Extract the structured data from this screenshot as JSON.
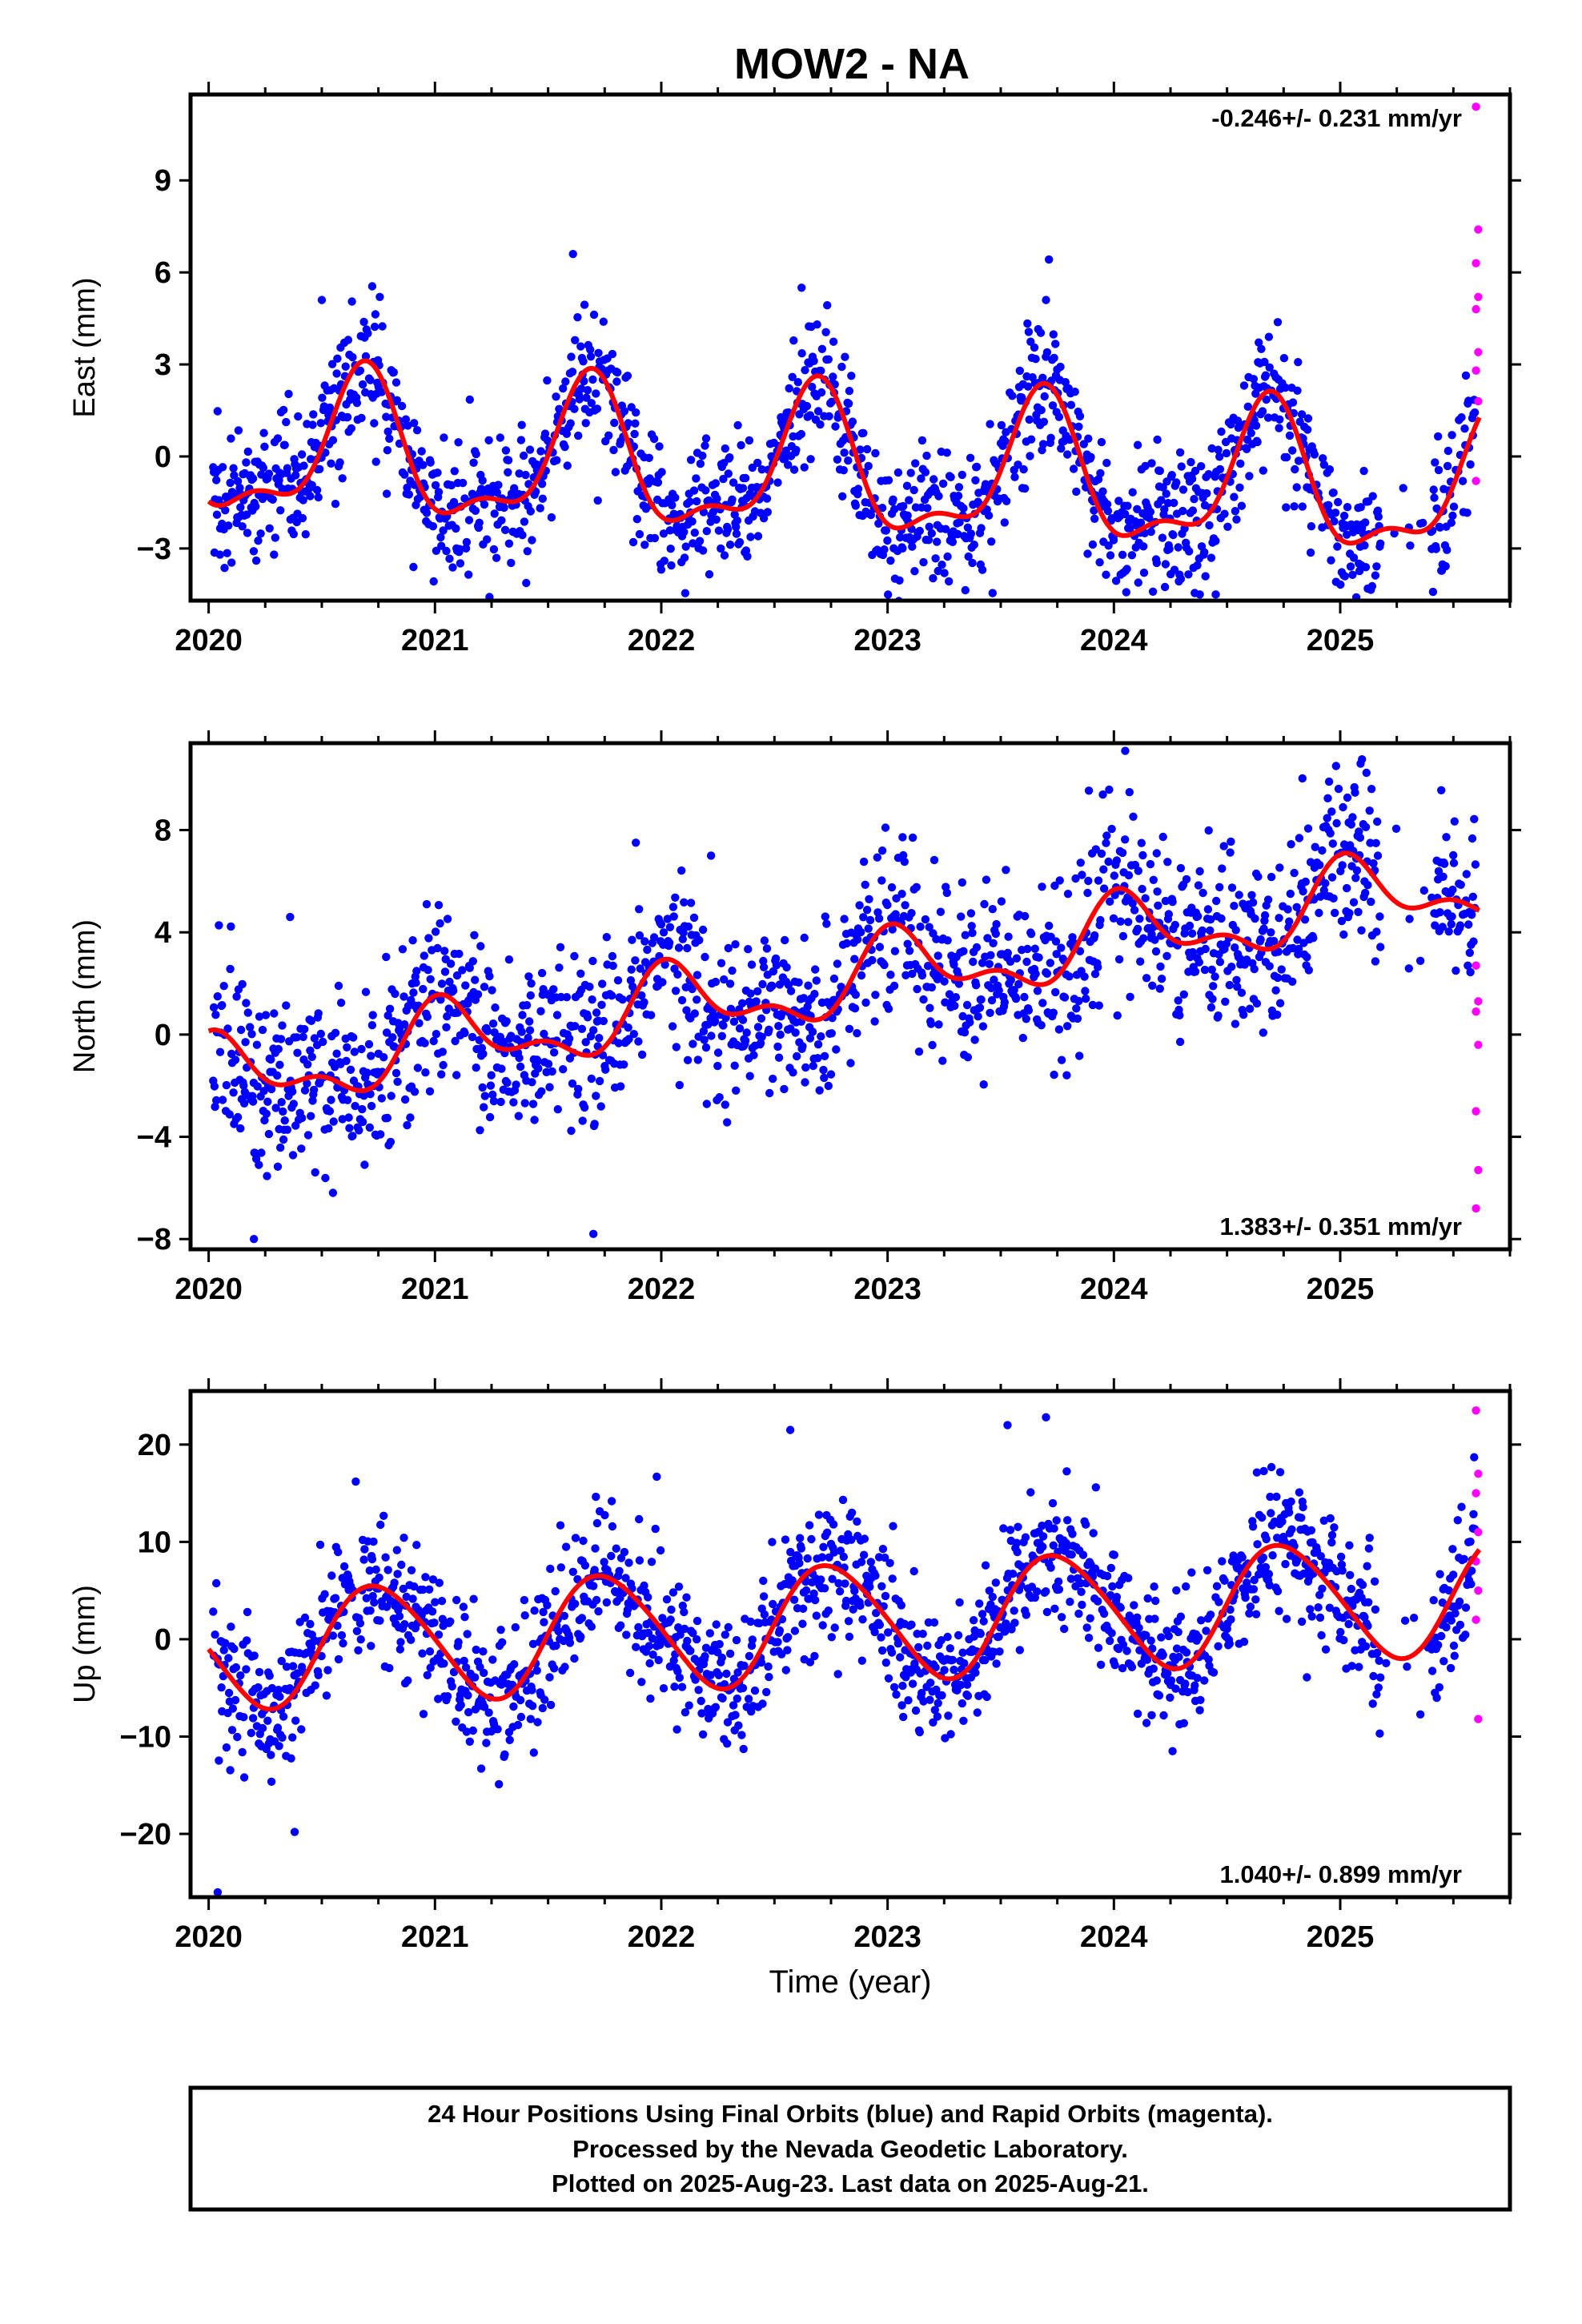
{
  "title": "MOW2 - NA",
  "x_axis_label": "Time (year)",
  "footer": {
    "line1": "24 Hour Positions Using Final Orbits (blue) and Rapid Orbits (magenta).",
    "line2": "Processed by the Nevada Geodetic Laboratory.",
    "line3": "Plotted on 2025-Aug-23. Last data on 2025-Aug-21."
  },
  "colors": {
    "final_orbits": "#0000ff",
    "rapid_orbits": "#ff00ff",
    "model_fit": "#ff0000",
    "frame": "#000000"
  },
  "chart_data": [
    {
      "type": "scatter",
      "panel": "East",
      "ylabel": "East (mm)",
      "xlim": [
        2019.92,
        2025.75
      ],
      "ylim": [
        -4.7,
        11.8
      ],
      "yticks": [
        -3,
        0,
        3,
        6,
        9
      ],
      "xticks": [
        2020,
        2021,
        2022,
        2023,
        2024,
        2025
      ],
      "rate_text": "-0.246+/- 0.231 mm/yr",
      "rate_position": "top-right",
      "model": {
        "rate": -0.246,
        "offset": 0.2,
        "annual_amp": 2.2,
        "annual_phase_peak": 0.68,
        "semiannual_amp": 0.9,
        "semiannual_phase_peak": 0.2
      },
      "final_scatter_sd": 1.1,
      "rapid_points": [
        [
          2025.6,
          11.4
        ],
        [
          2025.61,
          7.4
        ],
        [
          2025.6,
          6.3
        ],
        [
          2025.61,
          5.2
        ],
        [
          2025.6,
          4.8
        ],
        [
          2025.61,
          3.4
        ],
        [
          2025.6,
          2.8
        ],
        [
          2025.61,
          1.8
        ],
        [
          2025.6,
          -0.8
        ]
      ],
      "outliers": [
        [
          2020.05,
          -3.2
        ],
        [
          2021.61,
          6.6
        ],
        [
          2022.62,
          5.5
        ],
        [
          2024.45,
          -4.5
        ],
        [
          2020.5,
          5.1
        ],
        [
          2023.7,
          5.1
        ]
      ]
    },
    {
      "type": "scatter",
      "panel": "North",
      "ylabel": "North (mm)",
      "xlim": [
        2019.92,
        2025.75
      ],
      "ylim": [
        -8.4,
        11.4
      ],
      "yticks": [
        -8,
        -4,
        0,
        4,
        8
      ],
      "xticks": [
        2020,
        2021,
        2022,
        2023,
        2024,
        2025
      ],
      "rate_text": "1.383+/- 0.351 mm/yr",
      "rate_position": "bottom-right",
      "model": {
        "rate": 1.383,
        "offset": -1.8,
        "annual_amp": 1.3,
        "annual_phase_peak": 0.05,
        "semiannual_amp": 0.7,
        "semiannual_phase_peak": 0.5
      },
      "final_scatter_sd": 1.7,
      "rapid_points": [
        [
          2025.6,
          2.7
        ],
        [
          2025.61,
          1.3
        ],
        [
          2025.6,
          0.9
        ],
        [
          2025.61,
          -0.4
        ],
        [
          2025.6,
          -3.0
        ],
        [
          2025.61,
          -5.3
        ],
        [
          2025.6,
          -6.8
        ]
      ],
      "outliers": [
        [
          2020.36,
          4.6
        ],
        [
          2024.05,
          11.1
        ],
        [
          2025.09,
          10.6
        ],
        [
          2021.7,
          -7.8
        ],
        [
          2020.2,
          -8.0
        ],
        [
          2022.22,
          7.0
        ]
      ]
    },
    {
      "type": "scatter",
      "panel": "Up",
      "ylabel": "Up (mm)",
      "xlim": [
        2019.92,
        2025.75
      ],
      "ylim": [
        -26.5,
        25.5
      ],
      "yticks": [
        -20,
        -10,
        0,
        10,
        20
      ],
      "xticks": [
        2020,
        2021,
        2022,
        2023,
        2024,
        2025
      ],
      "rate_text": "1.040+/- 0.899 mm/yr",
      "rate_position": "bottom-right",
      "model": {
        "rate": 1.04,
        "offset": -1.2,
        "annual_amp": 6.0,
        "annual_phase_peak": 0.75,
        "semiannual_amp": 0.6,
        "semiannual_phase_peak": 0.1
      },
      "final_scatter_sd": 3.6,
      "rapid_points": [
        [
          2025.6,
          23.5
        ],
        [
          2025.61,
          17.0
        ],
        [
          2025.6,
          15.0
        ],
        [
          2025.61,
          11.0
        ],
        [
          2025.6,
          8.0
        ],
        [
          2025.61,
          5.0
        ],
        [
          2025.6,
          2.0
        ],
        [
          2025.61,
          -8.2
        ]
      ],
      "outliers": [
        [
          2020.04,
          -26.0
        ],
        [
          2020.65,
          16.2
        ],
        [
          2022.57,
          21.5
        ],
        [
          2023.7,
          22.8
        ],
        [
          2023.53,
          22.0
        ],
        [
          2020.38,
          -19.8
        ],
        [
          2021.98,
          16.7
        ]
      ]
    }
  ]
}
